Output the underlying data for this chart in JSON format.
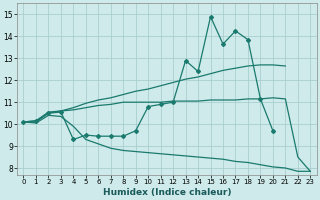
{
  "title": "",
  "xlabel": "Humidex (Indice chaleur)",
  "xlim": [
    -0.5,
    23.5
  ],
  "ylim": [
    7.7,
    15.5
  ],
  "yticks": [
    8,
    9,
    10,
    11,
    12,
    13,
    14,
    15
  ],
  "xticks": [
    0,
    1,
    2,
    3,
    4,
    5,
    6,
    7,
    8,
    9,
    10,
    11,
    12,
    13,
    14,
    15,
    16,
    17,
    18,
    19,
    20,
    21,
    22,
    23
  ],
  "bg_color": "#ceeaea",
  "grid_color": "#aacece",
  "line_color": "#1a7a6e",
  "lines": [
    {
      "x": [
        0,
        1,
        2,
        3,
        4,
        5,
        6,
        7,
        8,
        9,
        10,
        11,
        12,
        13,
        14,
        15,
        16,
        17,
        18,
        19,
        20
      ],
      "y": [
        10.1,
        10.15,
        10.5,
        10.55,
        9.3,
        9.5,
        9.45,
        9.45,
        9.45,
        9.7,
        10.8,
        10.9,
        11.0,
        12.9,
        12.4,
        14.9,
        13.65,
        14.25,
        13.85,
        11.15,
        9.7
      ],
      "marker": true
    },
    {
      "x": [
        0,
        1,
        2,
        3,
        4,
        5,
        6,
        7,
        8,
        9,
        10,
        11,
        12,
        13,
        14,
        15,
        16,
        17,
        18,
        19,
        20,
        21,
        22,
        23
      ],
      "y": [
        10.1,
        10.15,
        10.55,
        10.6,
        10.75,
        10.95,
        11.1,
        11.2,
        11.35,
        11.5,
        11.6,
        11.75,
        11.9,
        12.05,
        12.15,
        12.3,
        12.45,
        12.55,
        12.65,
        12.7,
        12.7,
        12.65,
        null,
        null
      ],
      "marker": false
    },
    {
      "x": [
        0,
        1,
        2,
        3,
        4,
        5,
        6,
        7,
        8,
        9,
        10,
        11,
        12,
        13,
        14,
        15,
        16,
        17,
        18,
        19,
        20,
        21,
        22,
        23
      ],
      "y": [
        10.1,
        10.1,
        10.5,
        10.6,
        10.65,
        10.75,
        10.85,
        10.9,
        11.0,
        11.0,
        11.0,
        11.0,
        11.05,
        11.05,
        11.05,
        11.1,
        11.1,
        11.1,
        11.15,
        11.15,
        11.2,
        11.15,
        8.5,
        7.85
      ],
      "marker": false
    },
    {
      "x": [
        0,
        1,
        2,
        3,
        4,
        5,
        6,
        7,
        8,
        9,
        10,
        11,
        12,
        13,
        14,
        15,
        16,
        17,
        18,
        19,
        20,
        21,
        22,
        23
      ],
      "y": [
        10.1,
        10.05,
        10.4,
        10.35,
        9.9,
        9.3,
        9.1,
        8.9,
        8.8,
        8.75,
        8.7,
        8.65,
        8.6,
        8.55,
        8.5,
        8.45,
        8.4,
        8.3,
        8.25,
        8.15,
        8.05,
        8.0,
        7.85,
        7.85
      ],
      "marker": false
    }
  ]
}
